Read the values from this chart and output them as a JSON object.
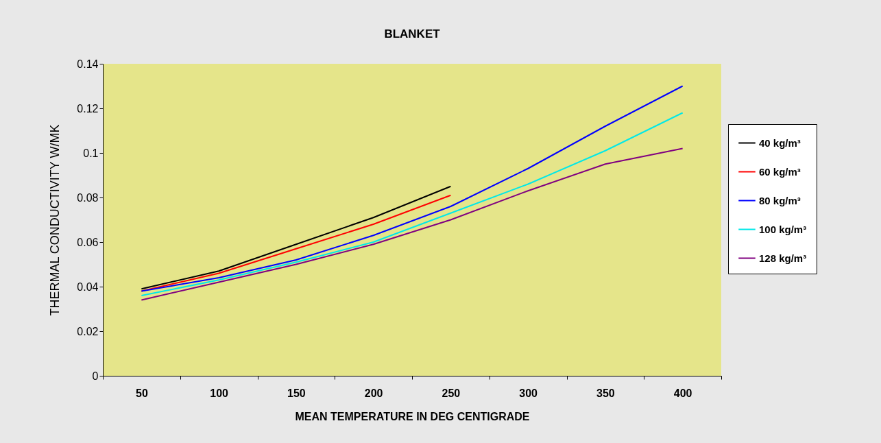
{
  "chart_data": {
    "type": "line",
    "title": "BLANKET",
    "xlabel": "MEAN TEMPERATURE IN DEG CENTIGRADE",
    "ylabel": "THERMAL CONDUCTIVITY W/MK",
    "categories": [
      "50",
      "100",
      "150",
      "200",
      "250",
      "300",
      "350",
      "400"
    ],
    "ylim": [
      0,
      0.14
    ],
    "yticks": [
      0,
      0.02,
      0.04,
      0.06,
      0.08,
      0.1,
      0.12,
      0.14
    ],
    "grid": false,
    "legend": "right",
    "marker": "none",
    "line_style": "solid",
    "series": [
      {
        "name": "40 kg/m³",
        "color": "#000000",
        "values": [
          0.039,
          0.047,
          0.059,
          0.071,
          0.085,
          null,
          null,
          null
        ]
      },
      {
        "name": "60 kg/m³",
        "color": "#ff0000",
        "values": [
          0.038,
          0.046,
          0.057,
          0.068,
          0.081,
          null,
          null,
          null
        ]
      },
      {
        "name": "80 kg/m³",
        "color": "#0000ff",
        "values": [
          0.038,
          0.044,
          0.052,
          0.063,
          0.076,
          0.093,
          0.112,
          0.13
        ]
      },
      {
        "name": "100 kg/m³",
        "color": "#00e8e8",
        "values": [
          0.036,
          0.043,
          0.051,
          0.06,
          0.073,
          0.086,
          0.101,
          0.118
        ]
      },
      {
        "name": "128 kg/m³",
        "color": "#800080",
        "values": [
          0.034,
          0.042,
          0.05,
          0.059,
          0.07,
          0.083,
          0.095,
          0.102
        ]
      }
    ]
  }
}
